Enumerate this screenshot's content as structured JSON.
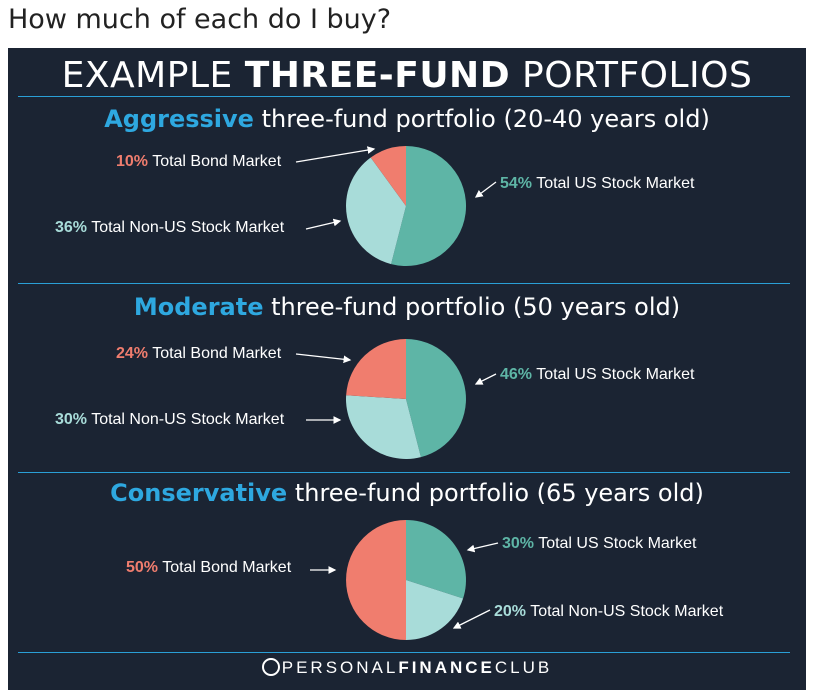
{
  "page": {
    "question": "How much of each do I buy?"
  },
  "infographic": {
    "title_prefix": "EXAMPLE ",
    "title_bold": "THREE-FUND",
    "title_suffix": " PORTFOLIOS",
    "footer_regular": "PERSONAL",
    "footer_bold": "FINANCE",
    "footer_suffix": "CLUB"
  },
  "colors": {
    "background": "#1b2433",
    "accent": "#2ea8e0",
    "total_bond_market": "#f07d6e",
    "total_us_stock_market": "#5eb5a6",
    "total_non_us_stock_market": "#a8dcd9"
  },
  "chart_data": [
    {
      "type": "pie",
      "title_highlight": "Aggressive",
      "title_rest": " three-fund portfolio (20-40 years old)",
      "slices": [
        {
          "label": "Total US Stock Market",
          "pct_text": "54%",
          "value": 54
        },
        {
          "label": "Total Non-US Stock Market",
          "pct_text": "36%",
          "value": 36
        },
        {
          "label": "Total Bond Market",
          "pct_text": "10%",
          "value": 10
        }
      ]
    },
    {
      "type": "pie",
      "title_highlight": "Moderate",
      "title_rest": " three-fund portfolio (50 years old)",
      "slices": [
        {
          "label": "Total US Stock Market",
          "pct_text": "46%",
          "value": 46
        },
        {
          "label": "Total Non-US Stock Market",
          "pct_text": "30%",
          "value": 30
        },
        {
          "label": "Total Bond Market",
          "pct_text": "24%",
          "value": 24
        }
      ]
    },
    {
      "type": "pie",
      "title_highlight": "Conservative",
      "title_rest": " three-fund portfolio (65 years old)",
      "slices": [
        {
          "label": "Total US Stock Market",
          "pct_text": "30%",
          "value": 30
        },
        {
          "label": "Total Non-US Stock Market",
          "pct_text": "20%",
          "value": 20
        },
        {
          "label": "Total Bond Market",
          "pct_text": "50%",
          "value": 50
        }
      ]
    }
  ]
}
